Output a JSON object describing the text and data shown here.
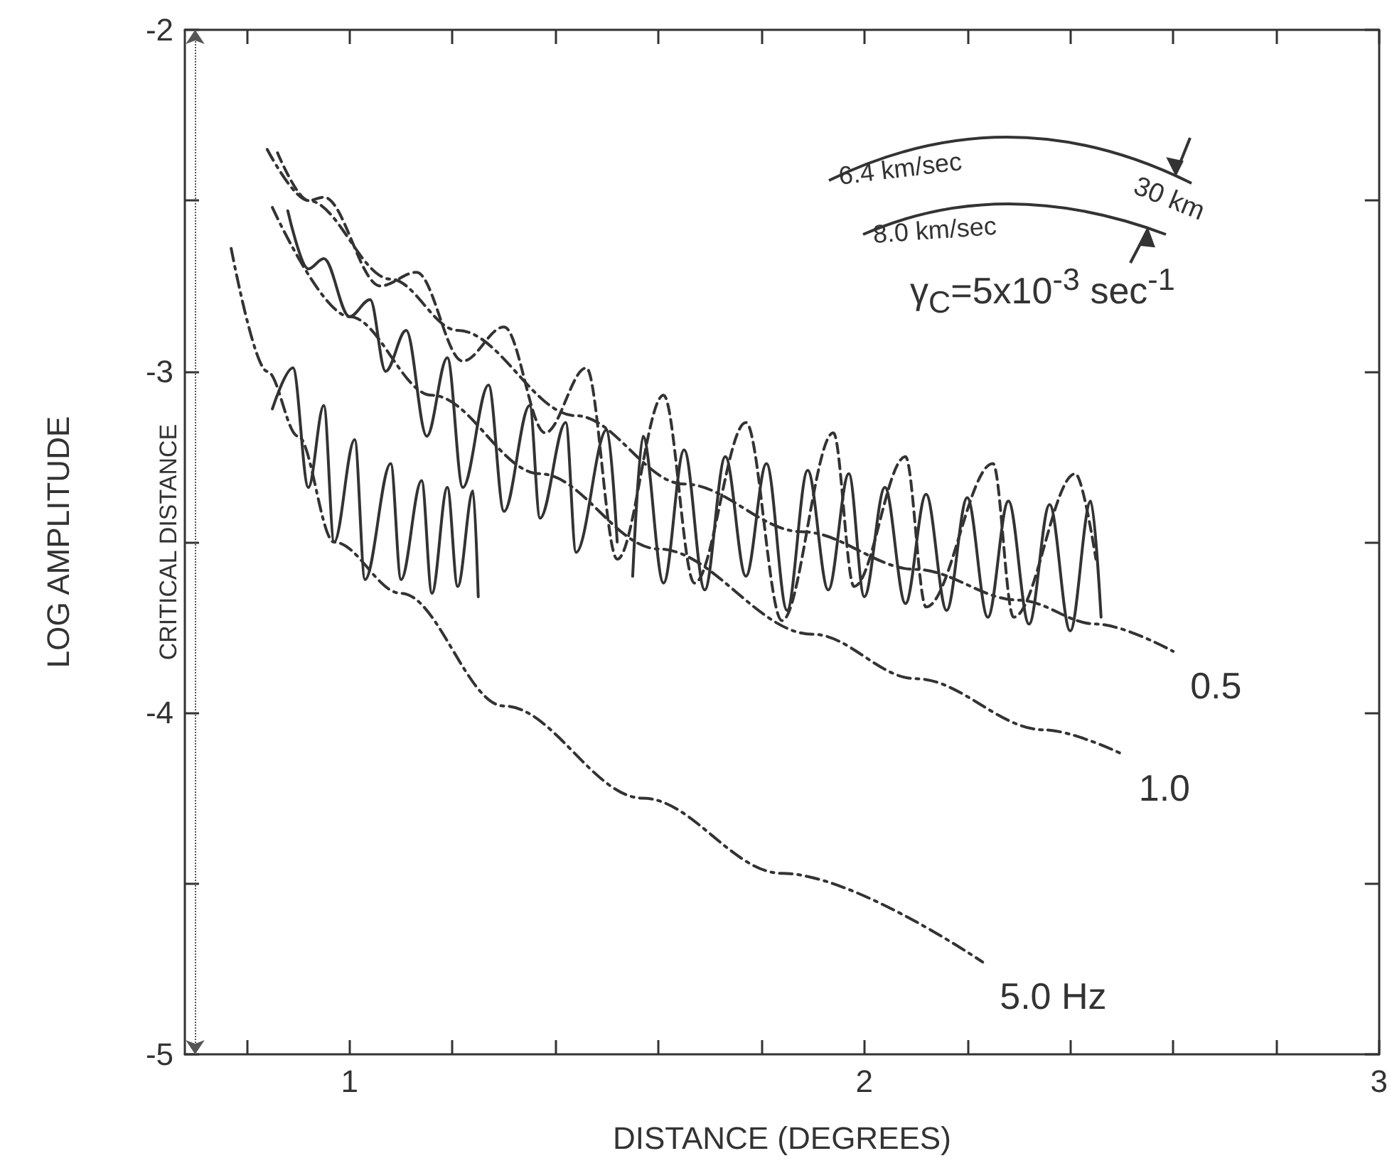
{
  "chart_data": {
    "type": "line",
    "xlabel": "DISTANCE (DEGREES)",
    "ylabel": "LOG AMPLITUDE",
    "xlim": [
      0.68,
      3
    ],
    "xticks": [
      {
        "value": 0.8,
        "label": null
      },
      1,
      {
        "value": 1.2,
        "label": null
      },
      {
        "value": 1.4,
        "label": null
      },
      {
        "value": 1.6,
        "label": null
      },
      {
        "value": 1.8,
        "label": null
      },
      2,
      {
        "value": 2.2,
        "label": null
      },
      {
        "value": 2.4,
        "label": null
      },
      {
        "value": 2.6,
        "label": null
      },
      {
        "value": 2.8,
        "label": null
      },
      3
    ],
    "ylim": [
      -5,
      -2
    ],
    "yticks": [
      -5,
      {
        "value": -4.5,
        "label": null
      },
      -4,
      {
        "value": -3.5,
        "label": null
      },
      -3,
      {
        "value": -2.5,
        "label": null
      },
      -2
    ],
    "grid": false,
    "legend": false,
    "marker": "none",
    "series": [
      {
        "name": "0.5",
        "color": "#333333",
        "line_style": "dashed",
        "x": [
          0.84,
          0.92,
          1.08,
          1.21,
          1.44,
          1.65,
          1.88,
          2.1,
          2.3,
          2.45,
          2.6
        ],
        "values": [
          -2.35,
          -2.5,
          -2.73,
          -2.88,
          -3.13,
          -3.33,
          -3.47,
          -3.58,
          -3.67,
          -3.74,
          -3.82
        ]
      },
      {
        "name": "1.0",
        "color": "#333333",
        "line_style": "dashed",
        "x": [
          0.85,
          1.0,
          1.16,
          1.37,
          1.6,
          1.9,
          2.1,
          2.35,
          2.5
        ],
        "values": [
          -2.52,
          -2.84,
          -3.07,
          -3.3,
          -3.52,
          -3.77,
          -3.9,
          -4.05,
          -4.12
        ]
      },
      {
        "name": "5.0 Hz",
        "color": "#333333",
        "line_style": "dashed",
        "x": [
          0.77,
          0.84,
          0.9,
          0.97,
          1.1,
          1.3,
          1.57,
          1.84,
          2.23
        ],
        "values": [
          -2.64,
          -3.0,
          -3.19,
          -3.5,
          -3.65,
          -3.98,
          -4.25,
          -4.47,
          -4.73
        ]
      },
      {
        "color": "#333333",
        "line_style": "dashed",
        "x": [
          0.86,
          0.92,
          0.95,
          1.06,
          1.13,
          1.22,
          1.3,
          1.38,
          1.46,
          1.52,
          1.61,
          1.67,
          1.77,
          1.84,
          1.94,
          1.98,
          2.08,
          2.12,
          2.25,
          2.29,
          2.41,
          2.45
        ],
        "values": [
          -2.36,
          -2.5,
          -2.49,
          -2.75,
          -2.71,
          -2.97,
          -2.87,
          -3.18,
          -2.99,
          -3.55,
          -3.07,
          -3.62,
          -3.15,
          -3.73,
          -3.18,
          -3.63,
          -3.25,
          -3.69,
          -3.27,
          -3.72,
          -3.3,
          -3.55
        ]
      },
      {
        "color": "#333333",
        "line_style": "solid",
        "x": [
          0.88,
          0.92,
          0.95,
          1.0,
          1.04,
          1.07,
          1.11,
          1.15,
          1.19,
          1.22,
          1.27,
          1.3,
          1.35,
          1.37,
          1.42,
          1.44,
          1.5,
          1.52
        ],
        "values": [
          -2.53,
          -2.7,
          -2.67,
          -2.84,
          -2.79,
          -3.0,
          -2.88,
          -3.19,
          -2.96,
          -3.34,
          -3.04,
          -3.41,
          -3.1,
          -3.43,
          -3.15,
          -3.53,
          -3.17,
          -3.5
        ]
      },
      {
        "color": "#333333",
        "line_style": "solid",
        "x": [
          1.55,
          1.57,
          1.61,
          1.65,
          1.69,
          1.73,
          1.77,
          1.81,
          1.85,
          1.89,
          1.93,
          1.97,
          2.0,
          2.04,
          2.08,
          2.12,
          2.16,
          2.2,
          2.24,
          2.28,
          2.32,
          2.36,
          2.4,
          2.44,
          2.46
        ],
        "values": [
          -3.6,
          -3.19,
          -3.62,
          -3.23,
          -3.64,
          -3.25,
          -3.6,
          -3.27,
          -3.7,
          -3.29,
          -3.64,
          -3.3,
          -3.66,
          -3.34,
          -3.68,
          -3.36,
          -3.7,
          -3.37,
          -3.72,
          -3.38,
          -3.74,
          -3.39,
          -3.76,
          -3.38,
          -3.72
        ]
      },
      {
        "color": "#333333",
        "line_style": "solid",
        "x": [
          0.85,
          0.89,
          0.92,
          0.95,
          0.97,
          1.01,
          1.03,
          1.08,
          1.1,
          1.14,
          1.16,
          1.19,
          1.21,
          1.24,
          1.25
        ],
        "values": [
          -3.11,
          -2.99,
          -3.34,
          -3.1,
          -3.5,
          -3.2,
          -3.61,
          -3.27,
          -3.61,
          -3.32,
          -3.65,
          -3.34,
          -3.63,
          -3.35,
          -3.66
        ]
      }
    ],
    "ref_lines": [
      {
        "axis": "x",
        "value": 0.7,
        "label": "CRITICAL DISTANCE"
      }
    ],
    "annotations": [
      "6.4 km/sec",
      "8.0 km/sec",
      "30 km",
      "γ$_{C}$=5x10$^{-3}$ sec$^{-1}$"
    ]
  }
}
